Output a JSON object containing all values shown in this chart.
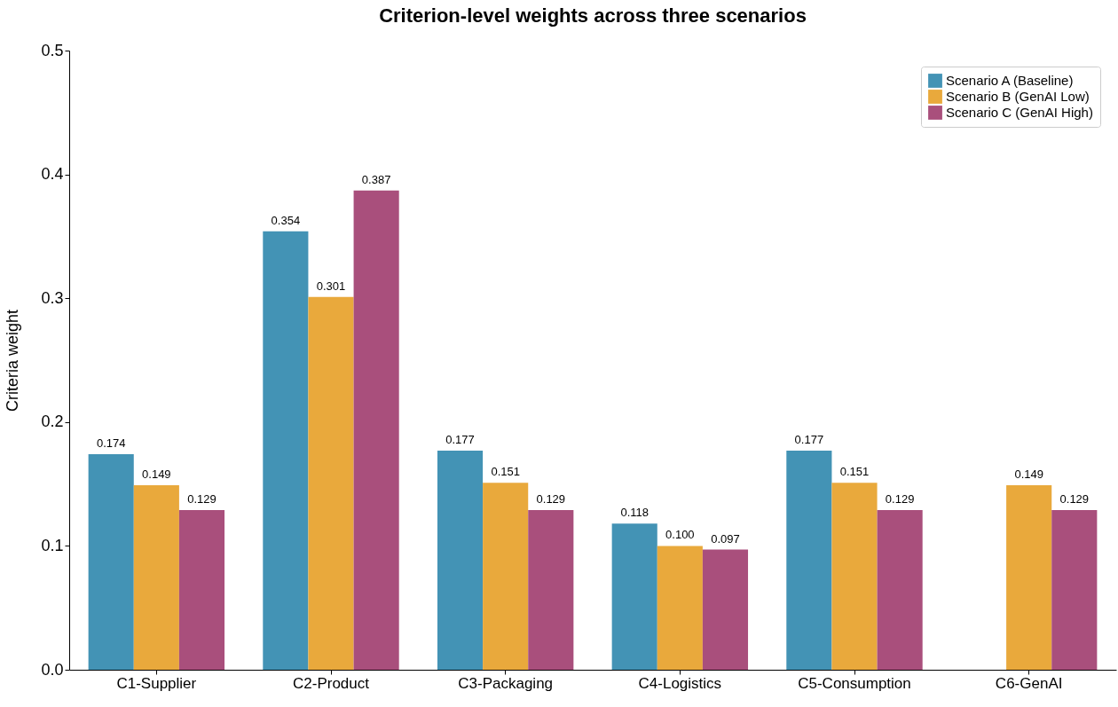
{
  "chart_data": {
    "type": "bar",
    "title": "Criterion-level weights across three scenarios",
    "ylabel": "Criteria weight",
    "categories": [
      "C1-Supplier",
      "C2-Product",
      "C3-Packaging",
      "C4-Logistics",
      "C5-Consumption",
      "C6-GenAI"
    ],
    "series": [
      {
        "name": "Scenario A (Baseline)",
        "color": "#4393b5",
        "values": [
          0.174,
          0.354,
          0.177,
          0.118,
          0.177,
          null
        ],
        "value_labels": [
          "0.174",
          "0.354",
          "0.177",
          "0.118",
          "0.177",
          null
        ]
      },
      {
        "name": "Scenario B (GenAI Low)",
        "color": "#e9a93c",
        "values": [
          0.149,
          0.301,
          0.151,
          0.1,
          0.151,
          0.149
        ],
        "value_labels": [
          "0.149",
          "0.301",
          "0.151",
          "0.100",
          "0.151",
          "0.149"
        ]
      },
      {
        "name": "Scenario C (GenAI High)",
        "color": "#a94f7c",
        "values": [
          0.129,
          0.387,
          0.129,
          0.097,
          0.129,
          0.129
        ],
        "value_labels": [
          "0.129",
          "0.387",
          "0.129",
          "0.097",
          "0.129",
          "0.129"
        ]
      }
    ],
    "ylim": [
      0,
      0.5
    ],
    "yticks": [
      {
        "value": 0,
        "label": "0.0"
      },
      0.1,
      0.2,
      0.3,
      0.4,
      0.5
    ],
    "grid": false,
    "legend": "top right"
  }
}
